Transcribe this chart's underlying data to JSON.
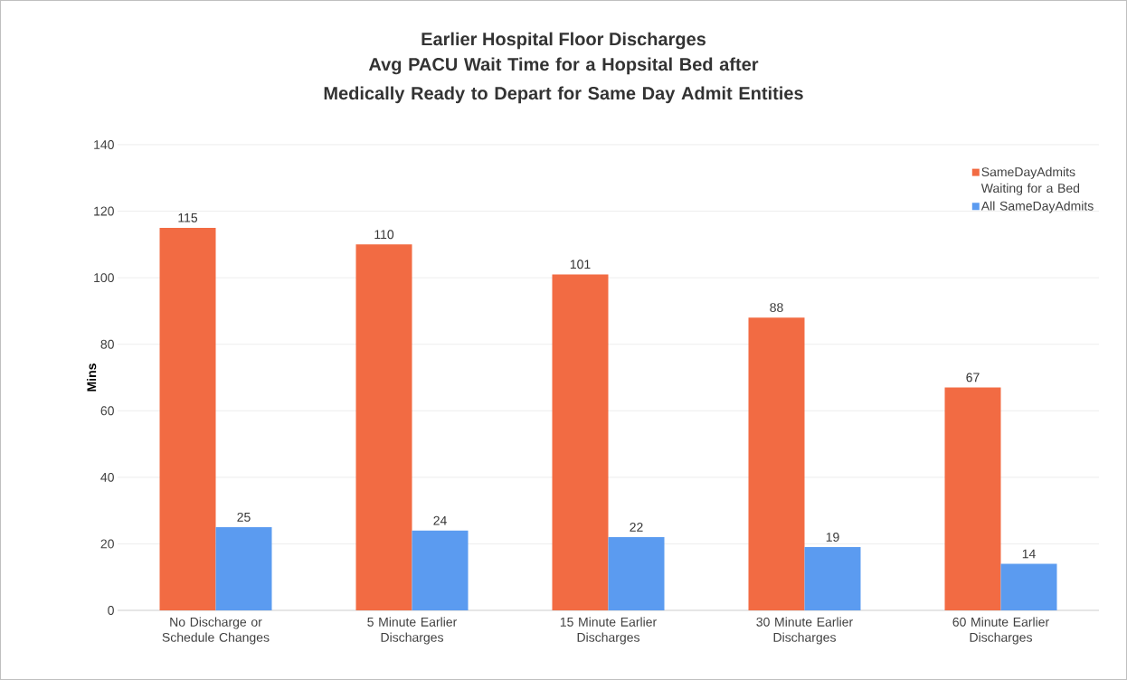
{
  "chart_data": {
    "type": "bar",
    "title": "Earlier Hospital Floor Discharges",
    "subtitle": "Avg PACU Wait Time for a Hopsital Bed after Medically Ready to Depart for Same Day Admit Entities",
    "ylabel": "Mins",
    "categories": [
      "No Discharge or Schedule Changes",
      "5 Minute Earlier Discharges",
      "15 Minute Earlier Discharges",
      "30 Minute Earlier Discharges",
      "60 Minute Earlier Discharges"
    ],
    "series": [
      {
        "name": "SameDayAdmits Waiting for a Bed",
        "color": "#f26b43",
        "values": [
          115,
          110,
          101,
          88,
          67
        ]
      },
      {
        "name": "All SameDayAdmits",
        "color": "#5b9bf0",
        "values": [
          25,
          24,
          22,
          19,
          14
        ]
      }
    ],
    "ylim": [
      0,
      140
    ],
    "yticks": [
      0,
      20,
      40,
      60,
      80,
      100,
      120,
      140
    ],
    "grid": "y",
    "legend": "top right",
    "data_labels": true
  }
}
